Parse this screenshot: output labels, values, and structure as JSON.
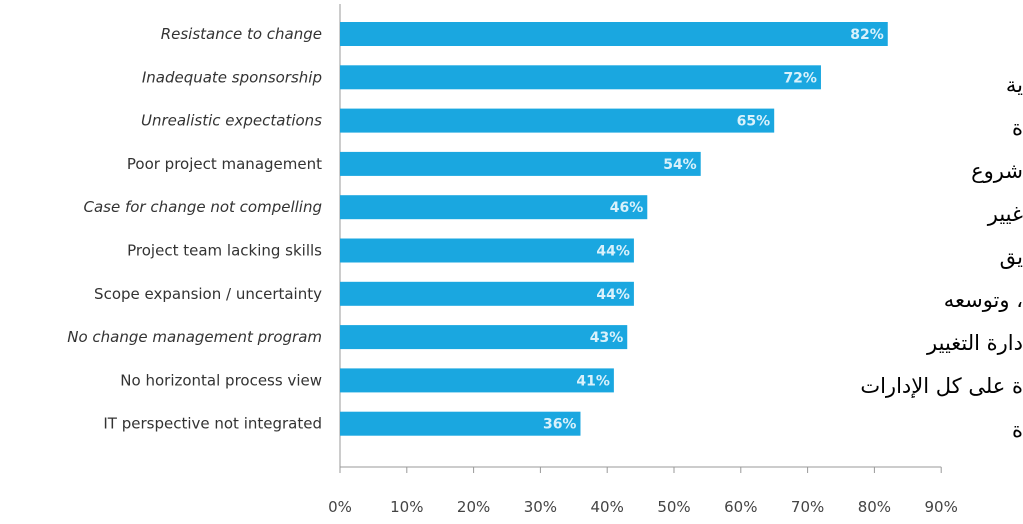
{
  "chart_data": {
    "type": "bar",
    "orientation": "horizontal",
    "categories": [
      "Resistance to change",
      "Inadequate sponsorship",
      "Unrealistic expectations",
      "Poor project management",
      "Case for change not compelling",
      "Project team lacking skills",
      "Scope expansion / uncertainty",
      "No change management program",
      "No horizontal process view",
      "IT perspective not integrated"
    ],
    "italic": [
      true,
      true,
      true,
      false,
      true,
      false,
      false,
      true,
      false,
      false
    ],
    "values": [
      82,
      72,
      65,
      54,
      46,
      44,
      44,
      43,
      41,
      36
    ],
    "value_labels": [
      "82%",
      "72%",
      "65%",
      "54%",
      "46%",
      "44%",
      "44%",
      "43%",
      "41%",
      "36%"
    ],
    "xlim": [
      0,
      90
    ],
    "x_ticks": [
      "0%",
      "10%",
      "20%",
      "30%",
      "40%",
      "50%",
      "60%",
      "70%",
      "80%",
      "90%"
    ],
    "grid": false,
    "colors": {
      "bar": "#1aa7e0",
      "axis": "#999999"
    }
  },
  "overlay_text": [
    "ية",
    "ة",
    "شروع",
    "غيير",
    "يق",
    "، وتوسعه",
    "دارة التغيير",
    "ة على كل الإدارات",
    "ة"
  ]
}
